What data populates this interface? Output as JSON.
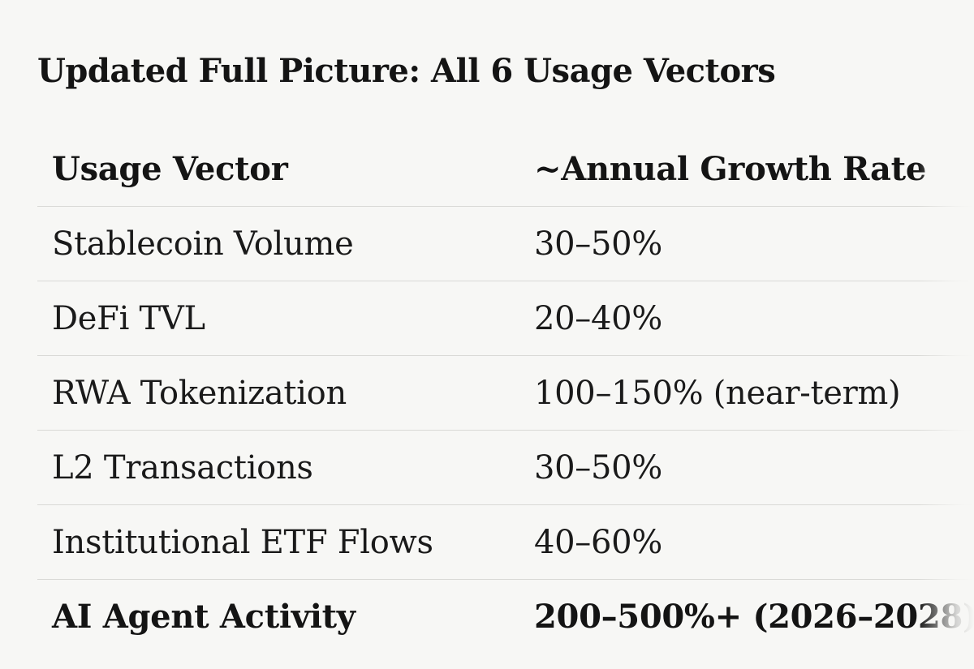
{
  "heading": "Updated Full Picture: All 6 Usage Vectors",
  "table": {
    "headers": [
      "Usage Vector",
      "~Annual Growth Rate"
    ],
    "rows": [
      {
        "vector": "Stablecoin Volume",
        "growth": "30–50%"
      },
      {
        "vector": "DeFi TVL",
        "growth": "20–40%"
      },
      {
        "vector": "RWA Tokenization",
        "growth": "100–150% (near-term)"
      },
      {
        "vector": "L2 Transactions",
        "growth": "30–50%"
      },
      {
        "vector": "Institutional ETF Flows",
        "growth": "40–60%"
      },
      {
        "vector": "AI Agent Activity",
        "growth": "200–500%+ (2026–2028)"
      }
    ]
  }
}
